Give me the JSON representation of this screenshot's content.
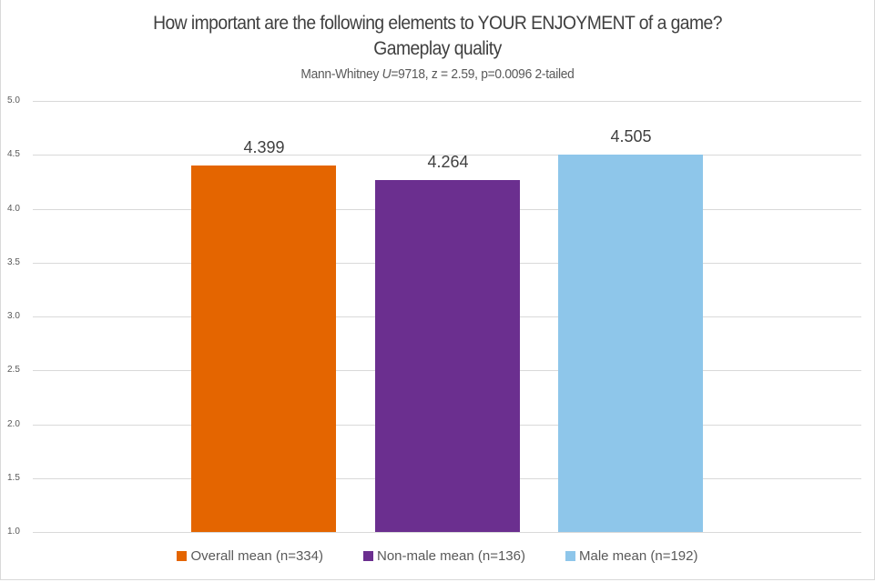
{
  "chart_data": {
    "type": "bar",
    "title": "How important are the following elements to YOUR ENJOYMENT of a game?",
    "subtitle": "Gameplay quality",
    "annotation": "Mann-Whitney U=9718, z = 2.59, p=0.0096 2-tailed",
    "annotation_parts": {
      "prefix": "Mann-Whitney ",
      "u_symbol": "U",
      "suffix": "=9718, z = 2.59, p=0.0096 2-tailed"
    },
    "categories": [
      "Overall mean (n=334)",
      "Non-male mean (n=136)",
      "Male mean (n=192)"
    ],
    "values": [
      4.399,
      4.264,
      4.505
    ],
    "value_labels": [
      "4.399",
      "4.264",
      "4.505"
    ],
    "colors": [
      "#E46500",
      "#6B2F8F",
      "#8EC6EA"
    ],
    "xlabel": "",
    "ylabel": "",
    "ylim": [
      1.0,
      5.0
    ],
    "yticks": [
      "5.0",
      "4.5",
      "4.0",
      "3.5",
      "3.0",
      "2.5",
      "2.0",
      "1.5",
      "1.0"
    ],
    "grid": true,
    "legend_position": "bottom"
  },
  "legend": [
    {
      "label": "Overall mean (n=334)",
      "color": "#E46500"
    },
    {
      "label": "Non-male mean (n=136)",
      "color": "#6B2F8F"
    },
    {
      "label": "Male mean (n=192)",
      "color": "#8EC6EA"
    }
  ]
}
